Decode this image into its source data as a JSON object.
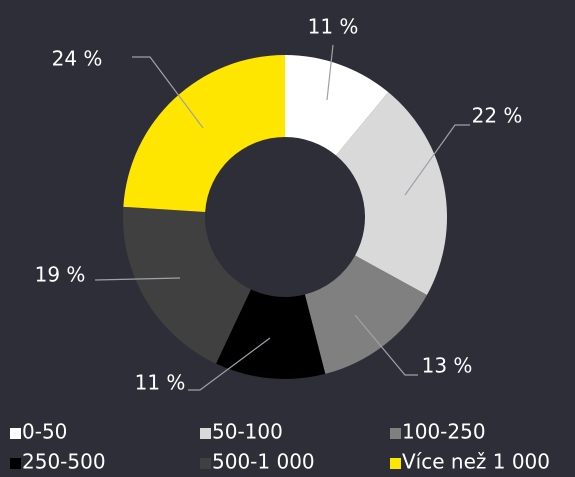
{
  "chart_data": {
    "type": "donut",
    "categories": [
      "0-50",
      "50-100",
      "100-250",
      "250-500",
      "500-1 000",
      "Více než 1 000"
    ],
    "values": [
      11,
      22,
      13,
      11,
      19,
      24
    ],
    "value_labels": [
      "11 %",
      "22 %",
      "13 %",
      "11 %",
      "19 %",
      "24 %"
    ],
    "colors": [
      "#ffffff",
      "#d9d9d9",
      "#808080",
      "#000000",
      "#404040",
      "#ffe600"
    ],
    "legend": "bottom"
  }
}
